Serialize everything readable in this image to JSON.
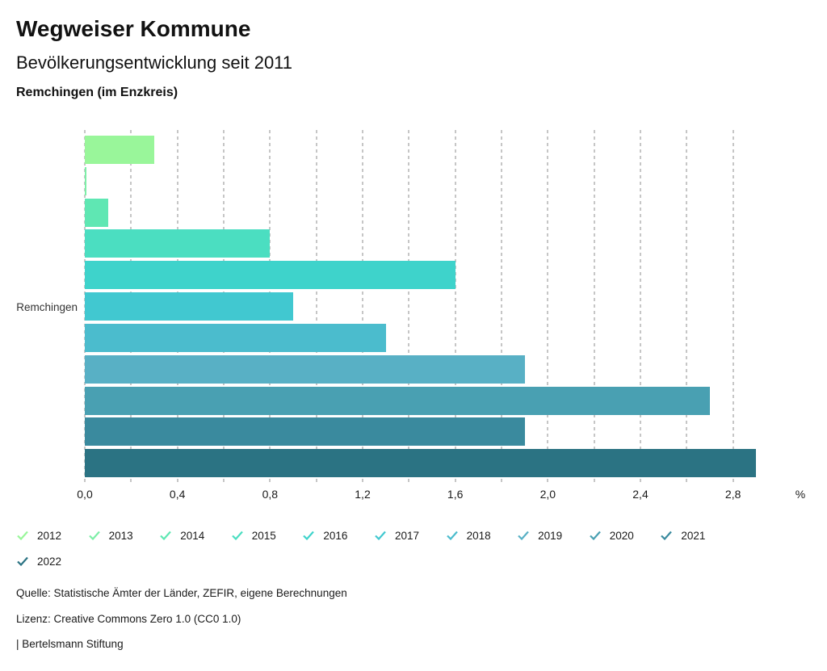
{
  "header": {
    "title": "Wegweiser Kommune",
    "subtitle": "Bevölkerungsentwicklung seit 2011",
    "region_line": "Remchingen (im Enzkreis)"
  },
  "chart_data": {
    "type": "bar",
    "orientation": "horizontal",
    "title": "Bevölkerungsentwicklung seit 2011",
    "region": "Remchingen (im Enzkreis)",
    "unit": "%",
    "y_category_label": "Remchingen",
    "categories": [
      "2012",
      "2013",
      "2014",
      "2015",
      "2016",
      "2017",
      "2018",
      "2019",
      "2020",
      "2021",
      "2022"
    ],
    "values": [
      0.3,
      0.0,
      0.1,
      0.8,
      1.6,
      0.9,
      1.3,
      1.9,
      2.7,
      1.9,
      2.9
    ],
    "colors": [
      "#99f69a",
      "#7deea7",
      "#5fe7b3",
      "#4bdec1",
      "#3ed3cb",
      "#41c8d0",
      "#4bbccd",
      "#58b0c5",
      "#49a0b2",
      "#3a8a9e",
      "#2b7383"
    ],
    "xlim": [
      0,
      3
    ],
    "x_major_tick_labels": [
      "0,0",
      "0,4",
      "0,8",
      "1,2",
      "1,6",
      "2,0",
      "2,4",
      "2,8"
    ],
    "x_major_tick_values": [
      0,
      0.4,
      0.8,
      1.2,
      1.6,
      2.0,
      2.4,
      2.8
    ],
    "x_minor_tick_step": 0.2,
    "grid": "vertical-dashed",
    "legend_position": "bottom"
  },
  "legend": {
    "items": [
      {
        "label": "2012",
        "color": "#99f69a"
      },
      {
        "label": "2013",
        "color": "#7deea7"
      },
      {
        "label": "2014",
        "color": "#5fe7b3"
      },
      {
        "label": "2015",
        "color": "#4bdec1"
      },
      {
        "label": "2016",
        "color": "#3ed3cb"
      },
      {
        "label": "2017",
        "color": "#41c8d0"
      },
      {
        "label": "2018",
        "color": "#4bbccd"
      },
      {
        "label": "2019",
        "color": "#58b0c5"
      },
      {
        "label": "2020",
        "color": "#49a0b2"
      },
      {
        "label": "2021",
        "color": "#3a8a9e"
      },
      {
        "label": "2022",
        "color": "#2b7383"
      }
    ]
  },
  "footer": {
    "source": "Quelle: Statistische Ämter der Länder, ZEFIR, eigene Berechnungen",
    "license": "Lizenz: Creative Commons Zero 1.0 (CC0 1.0)",
    "attribution": "| Bertelsmann Stiftung"
  }
}
